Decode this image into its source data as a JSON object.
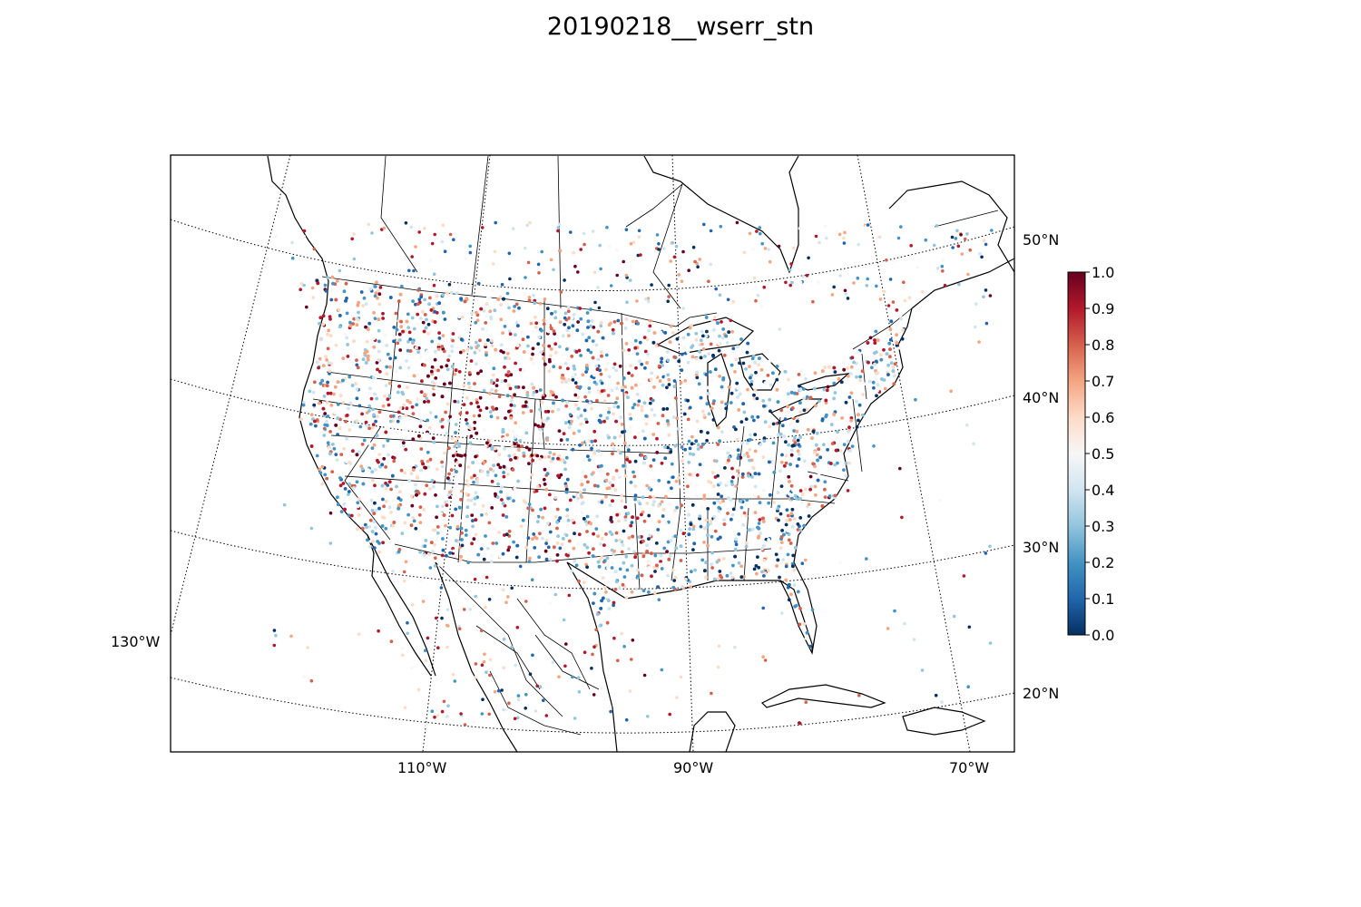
{
  "title": "20190218__wserr_stn",
  "map": {
    "projection": "lambert-conformal",
    "region": "CONUS",
    "meridian_labels": [
      "130°W",
      "110°W",
      "90°W",
      "70°W"
    ],
    "parallel_labels": [
      "50°N",
      "40°N",
      "30°N",
      "20°N"
    ],
    "gridlines": "dotted"
  },
  "colorbar": {
    "colormap": "RdBu_r",
    "min": 0.0,
    "max": 1.0,
    "ticks": [
      "0.0",
      "0.1",
      "0.2",
      "0.3",
      "0.4",
      "0.5",
      "0.6",
      "0.7",
      "0.8",
      "0.9",
      "1.0"
    ],
    "low_color": "#053061",
    "mid_color": "#f7f7f7",
    "high_color": "#67001f"
  },
  "stations": {
    "marker": "dot",
    "value_range": [
      0.0,
      1.0
    ],
    "clusters": [
      {
        "region": "Pacific coast",
        "dominant": "mixed"
      },
      {
        "region": "Rocky Mountains",
        "dominant": "high"
      },
      {
        "region": "Great Lakes",
        "dominant": "low"
      },
      {
        "region": "Northeast",
        "dominant": "mixed"
      },
      {
        "region": "Southeast",
        "dominant": "low"
      }
    ]
  }
}
